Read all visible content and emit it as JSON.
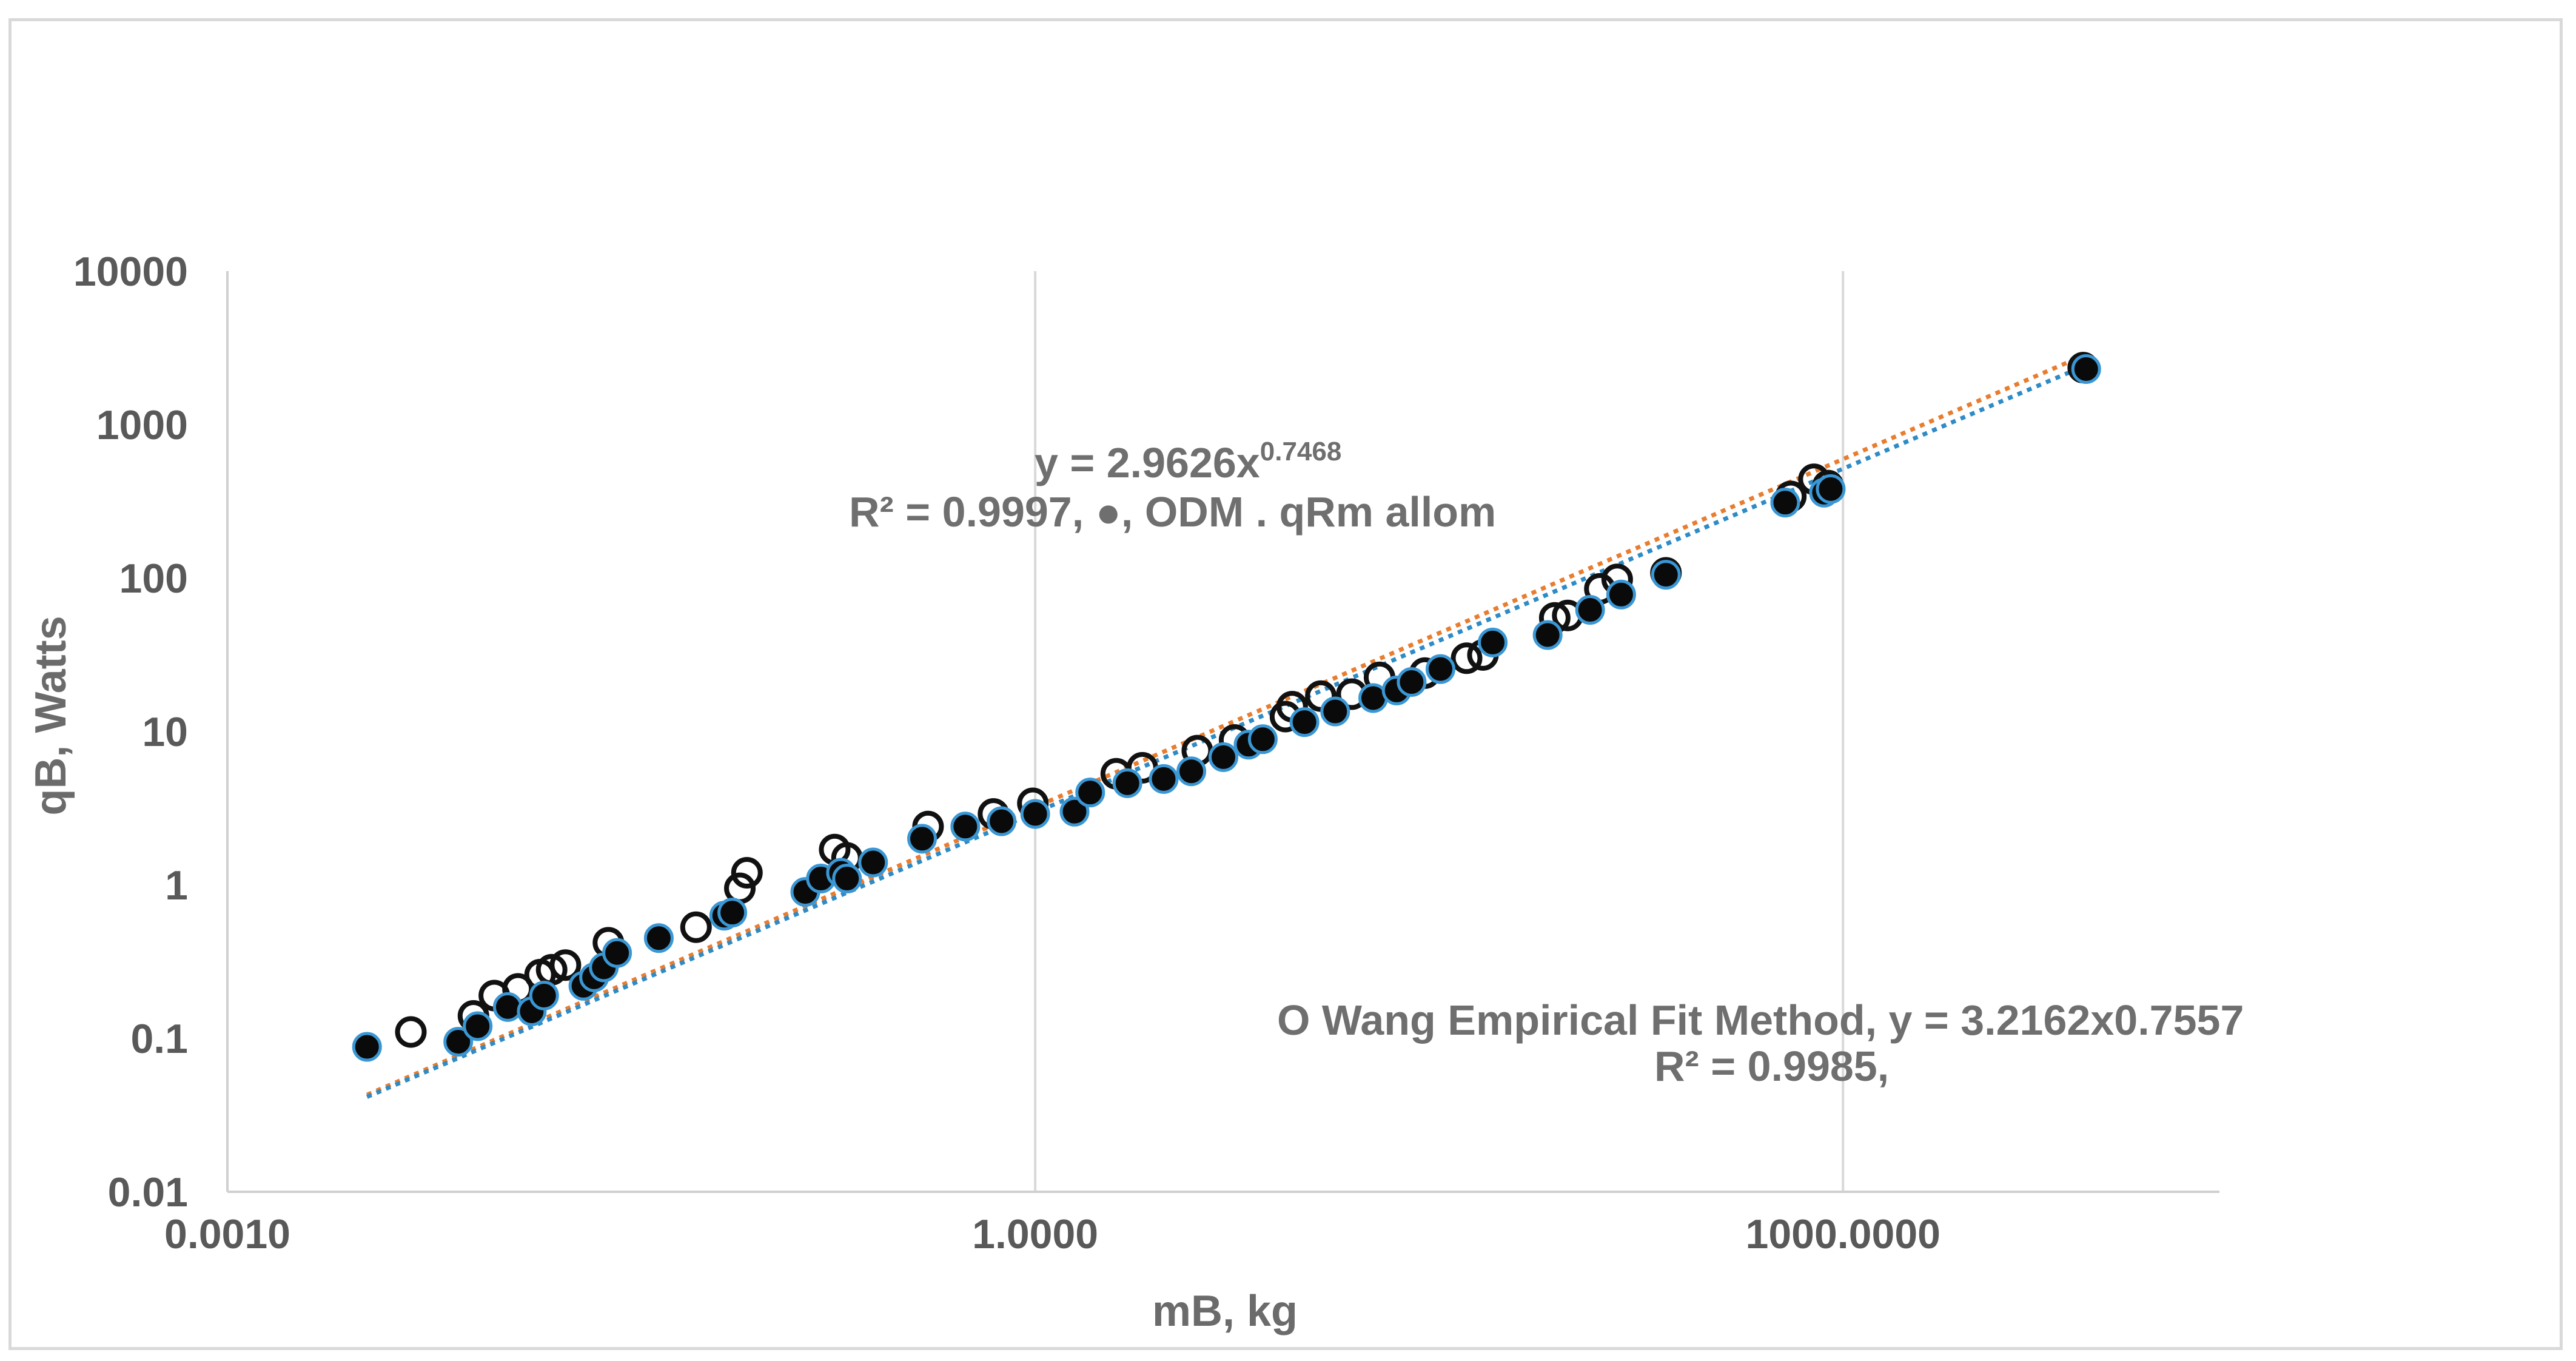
{
  "chart_data": {
    "type": "scatter",
    "x_scale": "log",
    "y_scale": "log",
    "xlabel": "mB, kg",
    "ylabel": "qB, Watts",
    "x_ticks": [
      "0.0010",
      "1.0000",
      "1000.0000"
    ],
    "x_tick_values": [
      0.001,
      1,
      1000
    ],
    "y_ticks": [
      "0.01",
      "0.1",
      "1",
      "10",
      "100",
      "1000",
      "10000"
    ],
    "y_tick_values": [
      0.01,
      0.1,
      1,
      10,
      100,
      1000,
      10000
    ],
    "xlim": [
      0.001,
      25000
    ],
    "ylim": [
      0.01,
      10000
    ],
    "grid": "vertical major gridlines",
    "annotations": {
      "fit1_equation": "y = 2.9626x",
      "fit1_exponent": "0.7468",
      "fit1_r2": "R² = 0.9997,  ●, ODM . qRm allom",
      "fit2_equation": "O Wang Empirical Fit Method, y = 3.2162x0.7557",
      "fit2_r2": "R² = 0.9985,"
    },
    "series": [
      {
        "marker": "open-circle",
        "color": "#111111",
        "points": [
          [
            0.0048,
            0.11
          ],
          [
            0.0082,
            0.14
          ],
          [
            0.0098,
            0.19
          ],
          [
            0.012,
            0.21
          ],
          [
            0.0145,
            0.26
          ],
          [
            0.016,
            0.28
          ],
          [
            0.018,
            0.3
          ],
          [
            0.026,
            0.42
          ],
          [
            0.055,
            0.53
          ],
          [
            0.08,
            0.95
          ],
          [
            0.085,
            1.2
          ],
          [
            0.18,
            1.7
          ],
          [
            0.2,
            1.5
          ],
          [
            0.4,
            2.4
          ],
          [
            0.7,
            2.9
          ],
          [
            0.98,
            3.4
          ],
          [
            2.0,
            5.3
          ],
          [
            2.5,
            5.8
          ],
          [
            4.0,
            7.5
          ],
          [
            5.5,
            8.8
          ],
          [
            8.5,
            12.5
          ],
          [
            9.0,
            14.5
          ],
          [
            11.5,
            17.0
          ],
          [
            15.0,
            17.5
          ],
          [
            19.0,
            22.5
          ],
          [
            28.0,
            24.0
          ],
          [
            40.0,
            30.0
          ],
          [
            46.0,
            31.5
          ],
          [
            85.0,
            55.0
          ],
          [
            95.0,
            57.0
          ],
          [
            125.0,
            85.0
          ],
          [
            145.0,
            98.0
          ],
          [
            220.0,
            108.0
          ],
          [
            640.0,
            340.0
          ],
          [
            780.0,
            440.0
          ],
          [
            880.0,
            400.0
          ],
          [
            7800.0,
            2350.0
          ]
        ]
      },
      {
        "marker": "filled-circle",
        "color": "#0a0a0a",
        "points": [
          [
            0.0033,
            0.088
          ],
          [
            0.0072,
            0.095
          ],
          [
            0.0085,
            0.12
          ],
          [
            0.011,
            0.16
          ],
          [
            0.0135,
            0.15
          ],
          [
            0.015,
            0.19
          ],
          [
            0.021,
            0.22
          ],
          [
            0.023,
            0.25
          ],
          [
            0.025,
            0.29
          ],
          [
            0.028,
            0.36
          ],
          [
            0.04,
            0.45
          ],
          [
            0.07,
            0.63
          ],
          [
            0.075,
            0.66
          ],
          [
            0.14,
            0.9
          ],
          [
            0.16,
            1.1
          ],
          [
            0.19,
            1.2
          ],
          [
            0.2,
            1.1
          ],
          [
            0.25,
            1.4
          ],
          [
            0.38,
            2.0
          ],
          [
            0.55,
            2.4
          ],
          [
            0.75,
            2.6
          ],
          [
            1.0,
            2.9
          ],
          [
            1.4,
            3.0
          ],
          [
            1.6,
            4.0
          ],
          [
            2.2,
            4.6
          ],
          [
            3.0,
            4.9
          ],
          [
            3.8,
            5.5
          ],
          [
            5.0,
            6.8
          ],
          [
            6.2,
            8.2
          ],
          [
            7.0,
            8.9
          ],
          [
            10.0,
            11.5
          ],
          [
            13.0,
            13.5
          ],
          [
            18.0,
            16.5
          ],
          [
            22.0,
            18.5
          ],
          [
            25.0,
            21.0
          ],
          [
            32.0,
            25.5
          ],
          [
            50.0,
            38.0
          ],
          [
            80.0,
            42.5
          ],
          [
            115.0,
            62.0
          ],
          [
            150.0,
            78.0
          ],
          [
            220.0,
            105.0
          ],
          [
            610.0,
            310.0
          ],
          [
            850.0,
            360.0
          ],
          [
            900.0,
            380.0
          ],
          [
            8000.0,
            2300.0
          ]
        ]
      }
    ],
    "trendlines": [
      {
        "color": "#e87d2f",
        "coef": 3.2162,
        "exp": 0.7557,
        "x_range": [
          0.0033,
          8000
        ]
      },
      {
        "color": "#2e8bc6",
        "coef": 2.9626,
        "exp": 0.7468,
        "x_range": [
          0.0033,
          8000
        ]
      }
    ]
  }
}
